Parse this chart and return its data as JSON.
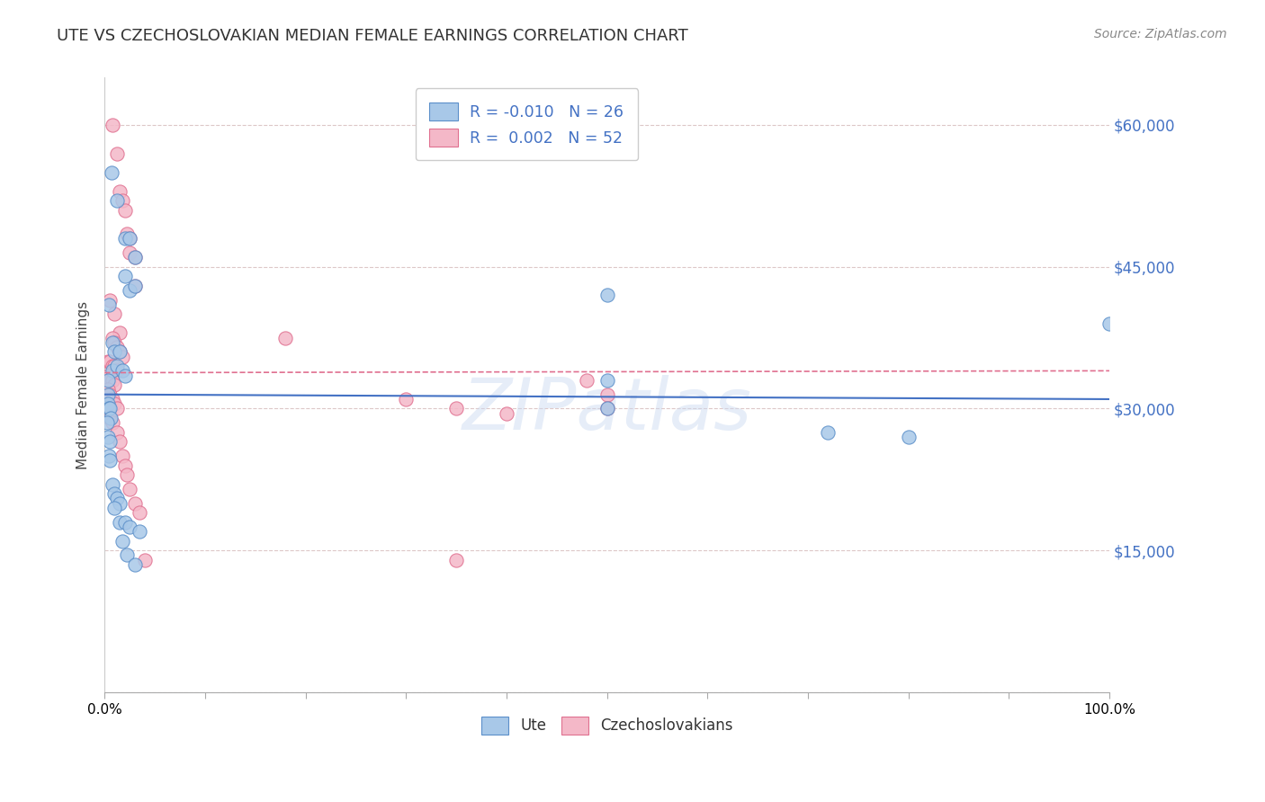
{
  "title": "UTE VS CZECHOSLOVAKIAN MEDIAN FEMALE EARNINGS CORRELATION CHART",
  "source": "Source: ZipAtlas.com",
  "ylabel": "Median Female Earnings",
  "yticks": [
    0,
    15000,
    30000,
    45000,
    60000
  ],
  "ytick_labels": [
    "",
    "$15,000",
    "$30,000",
    "$45,000",
    "$60,000"
  ],
  "xlim": [
    0.0,
    1.0
  ],
  "ylim": [
    0,
    65000
  ],
  "ute_color": "#a8c8e8",
  "czech_color": "#f4b8c8",
  "ute_edge_color": "#5b8fc9",
  "czech_edge_color": "#e07090",
  "ute_line_color": "#4472c4",
  "czech_line_color": "#e07090",
  "watermark": "ZIPatlas",
  "ute_line_y0": 31500,
  "ute_line_y1": 31000,
  "czech_line_y0": 33800,
  "czech_line_y1": 34000,
  "ute_points": [
    [
      0.007,
      55000
    ],
    [
      0.012,
      52000
    ],
    [
      0.02,
      48000
    ],
    [
      0.02,
      44000
    ],
    [
      0.025,
      42500
    ],
    [
      0.025,
      48000
    ],
    [
      0.03,
      46000
    ],
    [
      0.03,
      43000
    ],
    [
      0.004,
      41000
    ],
    [
      0.008,
      37000
    ],
    [
      0.01,
      36000
    ],
    [
      0.015,
      36000
    ],
    [
      0.008,
      34000
    ],
    [
      0.012,
      34500
    ],
    [
      0.018,
      34000
    ],
    [
      0.02,
      33500
    ],
    [
      0.003,
      33000
    ],
    [
      0.003,
      31500
    ],
    [
      0.003,
      30500
    ],
    [
      0.004,
      30000
    ],
    [
      0.005,
      30000
    ],
    [
      0.006,
      29000
    ],
    [
      0.002,
      28500
    ],
    [
      0.003,
      27000
    ],
    [
      0.005,
      26500
    ],
    [
      0.004,
      25000
    ],
    [
      0.005,
      24500
    ],
    [
      0.008,
      22000
    ],
    [
      0.01,
      21000
    ],
    [
      0.012,
      20500
    ],
    [
      0.015,
      20000
    ],
    [
      0.01,
      19500
    ],
    [
      0.015,
      18000
    ],
    [
      0.02,
      18000
    ],
    [
      0.025,
      17500
    ],
    [
      0.035,
      17000
    ],
    [
      0.018,
      16000
    ],
    [
      0.022,
      14500
    ],
    [
      0.03,
      13500
    ],
    [
      0.5,
      42000
    ],
    [
      0.5,
      33000
    ],
    [
      0.5,
      30000
    ],
    [
      0.72,
      27500
    ],
    [
      0.8,
      27000
    ],
    [
      1.0,
      39000
    ]
  ],
  "czech_points": [
    [
      0.008,
      60000
    ],
    [
      0.012,
      57000
    ],
    [
      0.015,
      53000
    ],
    [
      0.018,
      52000
    ],
    [
      0.02,
      51000
    ],
    [
      0.022,
      48500
    ],
    [
      0.025,
      48000
    ],
    [
      0.025,
      46500
    ],
    [
      0.03,
      46000
    ],
    [
      0.03,
      43000
    ],
    [
      0.005,
      41500
    ],
    [
      0.01,
      40000
    ],
    [
      0.015,
      38000
    ],
    [
      0.008,
      37500
    ],
    [
      0.01,
      37000
    ],
    [
      0.012,
      36500
    ],
    [
      0.015,
      36000
    ],
    [
      0.018,
      35500
    ],
    [
      0.003,
      35000
    ],
    [
      0.005,
      35000
    ],
    [
      0.008,
      34500
    ],
    [
      0.01,
      34500
    ],
    [
      0.012,
      34000
    ],
    [
      0.003,
      33500
    ],
    [
      0.005,
      33000
    ],
    [
      0.008,
      33000
    ],
    [
      0.01,
      32500
    ],
    [
      0.003,
      32000
    ],
    [
      0.005,
      31500
    ],
    [
      0.008,
      31000
    ],
    [
      0.01,
      30500
    ],
    [
      0.012,
      30000
    ],
    [
      0.003,
      29500
    ],
    [
      0.005,
      29000
    ],
    [
      0.008,
      28500
    ],
    [
      0.012,
      27500
    ],
    [
      0.015,
      26500
    ],
    [
      0.018,
      25000
    ],
    [
      0.02,
      24000
    ],
    [
      0.022,
      23000
    ],
    [
      0.025,
      21500
    ],
    [
      0.03,
      20000
    ],
    [
      0.035,
      19000
    ],
    [
      0.04,
      14000
    ],
    [
      0.18,
      37500
    ],
    [
      0.3,
      31000
    ],
    [
      0.35,
      30000
    ],
    [
      0.4,
      29500
    ],
    [
      0.48,
      33000
    ],
    [
      0.5,
      31500
    ],
    [
      0.5,
      30000
    ],
    [
      0.35,
      14000
    ]
  ]
}
